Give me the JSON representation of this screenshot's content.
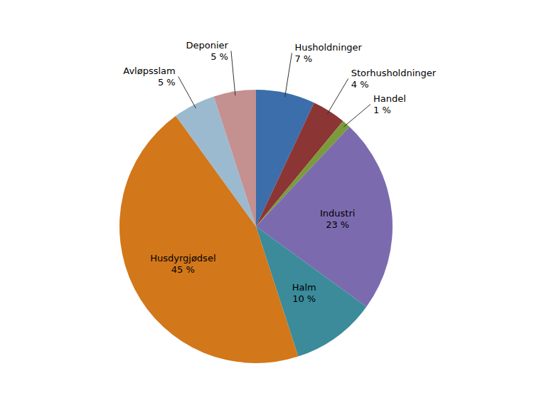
{
  "chart_data": {
    "type": "pie",
    "categories": [
      "Husholdninger",
      "Storhusholdninger",
      "Handel",
      "Industri",
      "Halm",
      "Husdyrgjødsel",
      "Avløpsslam",
      "Deponier"
    ],
    "values": [
      7,
      4,
      1,
      23,
      10,
      45,
      5,
      5
    ],
    "value_labels": [
      "7 %",
      "4 %",
      "1 %",
      "23 %",
      "10 %",
      "45 %",
      "5 %",
      "5 %"
    ],
    "colors": [
      "#3B6EAA",
      "#8B3535",
      "#7B9B3A",
      "#7B6BAE",
      "#3B8B9B",
      "#D2771A",
      "#9BBAD0",
      "#C49090"
    ],
    "data_labels": true
  }
}
